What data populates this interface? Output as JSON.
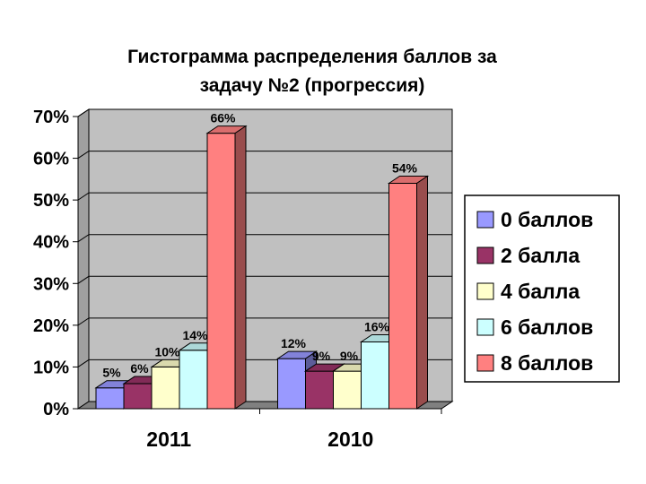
{
  "chart_data": {
    "type": "bar",
    "title_lines": [
      "Гистограмма распределения баллов за",
      "задачу №2 (прогрессия)"
    ],
    "categories": [
      "2011",
      "2010"
    ],
    "y_ticks": [
      "0%",
      "10%",
      "20%",
      "30%",
      "40%",
      "50%",
      "60%",
      "70%"
    ],
    "ylim": [
      0,
      70
    ],
    "grid": true,
    "legend_position": "right",
    "series": [
      {
        "name": "0 баллов",
        "color": "#9999FF",
        "values": [
          5,
          12
        ],
        "labels": [
          "5%",
          "12%"
        ]
      },
      {
        "name": "2 балла",
        "color": "#993366",
        "values": [
          6,
          9
        ],
        "labels": [
          "6%",
          "9%"
        ]
      },
      {
        "name": "4 балла",
        "color": "#FFFFCC",
        "values": [
          10,
          9
        ],
        "labels": [
          "10%",
          "9%"
        ]
      },
      {
        "name": "6 баллов",
        "color": "#CCFFFF",
        "values": [
          14,
          16
        ],
        "labels": [
          "14%",
          "16%"
        ]
      },
      {
        "name": "8 баллов",
        "color": "#FF8080",
        "values": [
          66,
          54
        ],
        "labels": [
          "66%",
          "54%"
        ]
      }
    ]
  }
}
